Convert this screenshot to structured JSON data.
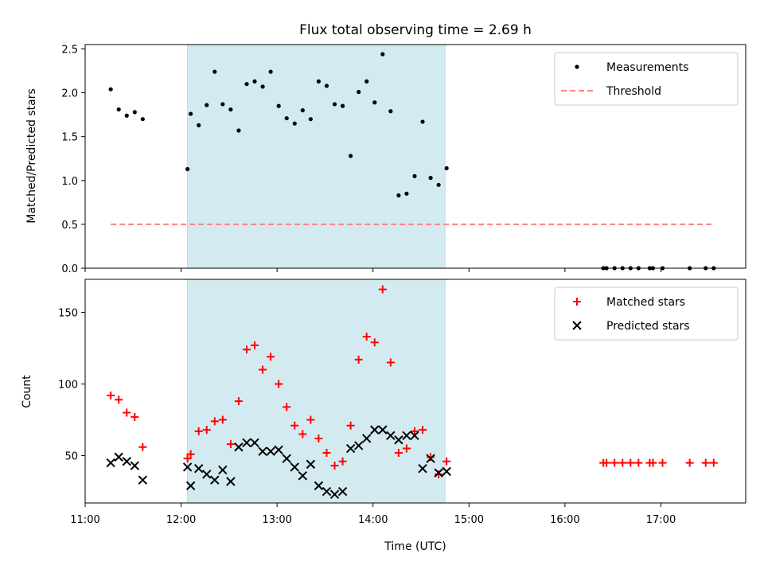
{
  "chart_data": [
    {
      "type": "scatter",
      "title": "Flux total observing time = 2.69 h",
      "xlabel": "",
      "ylabel": "Matched/Predicted stars",
      "xlim": [
        "11:00",
        "17:53"
      ],
      "ylim": [
        0,
        2.55
      ],
      "yticks": [
        0.0,
        0.5,
        1.0,
        1.5,
        2.0,
        2.5
      ],
      "ytick_labels": [
        "0.0",
        "0.5",
        "1.0",
        "1.5",
        "2.0",
        "2.5"
      ],
      "shaded_span": {
        "x": [
          "12:04",
          "14:45"
        ],
        "color": "#d4eaf1"
      },
      "legend": {
        "position": "top-right",
        "entries": [
          "Measurements",
          "Threshold"
        ]
      },
      "series": [
        {
          "name": "Measurements",
          "marker": "dot",
          "color": "#000000",
          "x": [
            "11:16",
            "11:21",
            "11:26",
            "11:31",
            "11:36",
            "12:04",
            "12:06",
            "12:11",
            "12:16",
            "12:21",
            "12:26",
            "12:31",
            "12:36",
            "12:41",
            "12:46",
            "12:51",
            "12:56",
            "13:01",
            "13:06",
            "13:11",
            "13:16",
            "13:21",
            "13:26",
            "13:31",
            "13:36",
            "13:41",
            "13:46",
            "13:51",
            "13:56",
            "14:01",
            "14:06",
            "14:11",
            "14:16",
            "14:21",
            "14:26",
            "14:31",
            "14:36",
            "14:41",
            "14:46",
            "16:24",
            "16:26",
            "16:31",
            "16:36",
            "16:41",
            "16:46",
            "16:53",
            "16:55",
            "17:01",
            "17:18",
            "17:28",
            "17:33"
          ],
          "y": [
            2.04,
            1.81,
            1.74,
            1.78,
            1.7,
            1.13,
            1.76,
            1.63,
            1.86,
            2.24,
            1.87,
            1.81,
            1.57,
            2.1,
            2.13,
            2.07,
            2.24,
            1.85,
            1.71,
            1.65,
            1.8,
            1.7,
            2.13,
            2.08,
            1.87,
            1.85,
            1.28,
            2.01,
            2.13,
            1.89,
            2.44,
            1.79,
            0.83,
            0.85,
            1.05,
            1.67,
            1.03,
            0.95,
            1.14,
            0,
            0,
            0,
            0,
            0,
            0,
            0,
            0,
            0,
            0,
            0,
            0
          ]
        },
        {
          "name": "Threshold",
          "style": "dashed",
          "color": "#ff7f7f",
          "x": [
            "11:16",
            "17:33"
          ],
          "y": [
            0.5,
            0.5
          ]
        }
      ]
    },
    {
      "type": "scatter",
      "title": "",
      "xlabel": "Time (UTC)",
      "ylabel": "Count",
      "xlim": [
        "11:00",
        "17:53"
      ],
      "ylim": [
        17,
        173
      ],
      "xticks": [
        "11:00",
        "12:00",
        "13:00",
        "14:00",
        "15:00",
        "16:00",
        "17:00"
      ],
      "yticks": [
        50,
        100,
        150
      ],
      "ytick_labels": [
        "50",
        "100",
        "150"
      ],
      "shaded_span": {
        "x": [
          "12:04",
          "14:45"
        ],
        "color": "#d4eaf1"
      },
      "legend": {
        "position": "top-right",
        "entries": [
          "Matched stars",
          "Predicted stars"
        ]
      },
      "series": [
        {
          "name": "Matched stars",
          "marker": "plus",
          "color": "#ff0000",
          "x": [
            "11:16",
            "11:21",
            "11:26",
            "11:31",
            "11:36",
            "12:04",
            "12:06",
            "12:11",
            "12:16",
            "12:21",
            "12:26",
            "12:31",
            "12:36",
            "12:41",
            "12:46",
            "12:51",
            "12:56",
            "13:01",
            "13:06",
            "13:11",
            "13:16",
            "13:21",
            "13:26",
            "13:31",
            "13:36",
            "13:41",
            "13:46",
            "13:51",
            "13:56",
            "14:01",
            "14:06",
            "14:11",
            "14:16",
            "14:21",
            "14:26",
            "14:31",
            "14:36",
            "14:41",
            "14:46",
            "16:24",
            "16:26",
            "16:31",
            "16:36",
            "16:41",
            "16:46",
            "16:53",
            "16:55",
            "17:01",
            "17:18",
            "17:28",
            "17:33"
          ],
          "y": [
            92,
            89,
            80,
            77,
            56,
            48,
            51,
            67,
            68,
            74,
            75,
            58,
            88,
            124,
            127,
            110,
            119,
            100,
            84,
            71,
            65,
            75,
            62,
            52,
            43,
            46,
            71,
            117,
            133,
            129,
            166,
            115,
            52,
            55,
            67,
            68,
            49,
            37,
            46,
            45,
            45,
            45,
            45,
            45,
            45,
            45,
            45,
            45,
            45,
            45,
            45
          ]
        },
        {
          "name": "Predicted stars",
          "marker": "x",
          "color": "#000000",
          "x": [
            "11:16",
            "11:21",
            "11:26",
            "11:31",
            "11:36",
            "12:04",
            "12:06",
            "12:11",
            "12:16",
            "12:21",
            "12:26",
            "12:31",
            "12:36",
            "12:41",
            "12:46",
            "12:51",
            "12:56",
            "13:01",
            "13:06",
            "13:11",
            "13:16",
            "13:21",
            "13:26",
            "13:31",
            "13:36",
            "13:41",
            "13:46",
            "13:51",
            "13:56",
            "14:01",
            "14:06",
            "14:11",
            "14:16",
            "14:21",
            "14:26",
            "14:31",
            "14:36",
            "14:41",
            "14:46"
          ],
          "y": [
            45,
            49,
            46,
            43,
            33,
            42,
            29,
            41,
            37,
            33,
            40,
            32,
            56,
            59,
            59,
            53,
            53,
            54,
            48,
            42,
            36,
            44,
            29,
            25,
            23,
            25,
            55,
            57,
            62,
            68,
            68,
            64,
            61,
            64,
            64,
            41,
            48,
            38,
            39
          ]
        }
      ]
    }
  ]
}
